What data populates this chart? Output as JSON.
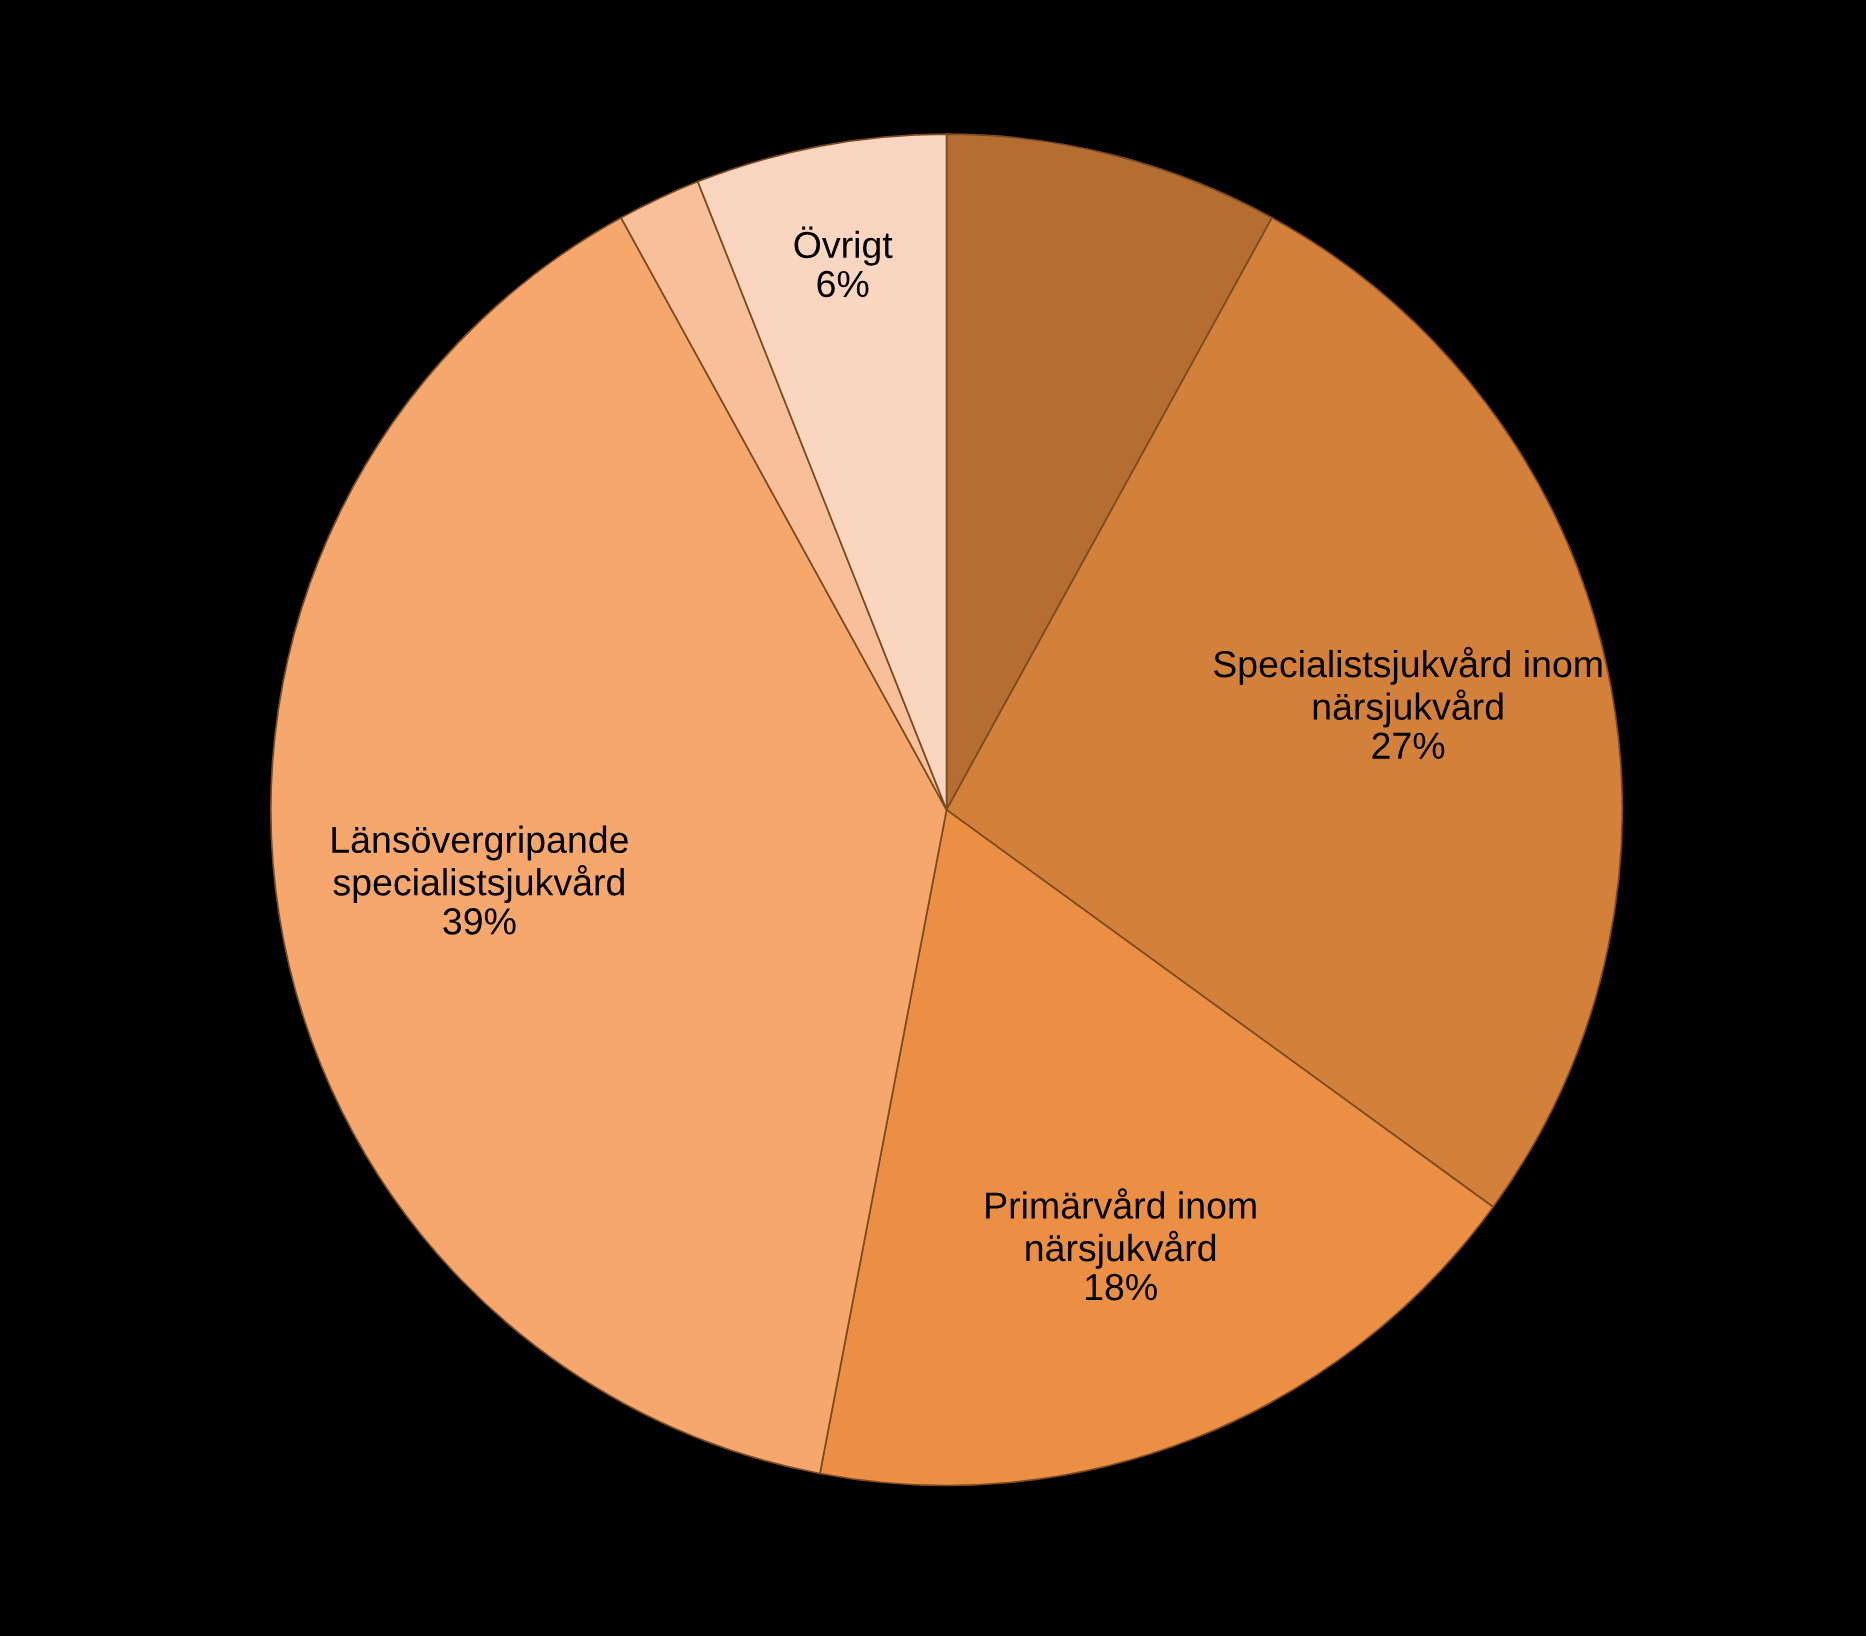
{
  "chart_data": {
    "type": "pie",
    "categories": [
      null,
      "Specialistsjukvård inom\nnärsjukvård",
      "Primärvård inom\nnärsjukvård",
      "Länsövergripande\nspecialistsjukvård",
      null,
      "Övrigt"
    ],
    "values": [
      8,
      27,
      18,
      39,
      2,
      6
    ],
    "value_labels": [
      null,
      "27%",
      "18%",
      "39%",
      null,
      "6%"
    ],
    "colors": [
      "#b46e32",
      "#d2803a",
      "#eb8f45",
      "#f5a76e",
      "#f7bf9a",
      "#fad5c0"
    ]
  }
}
